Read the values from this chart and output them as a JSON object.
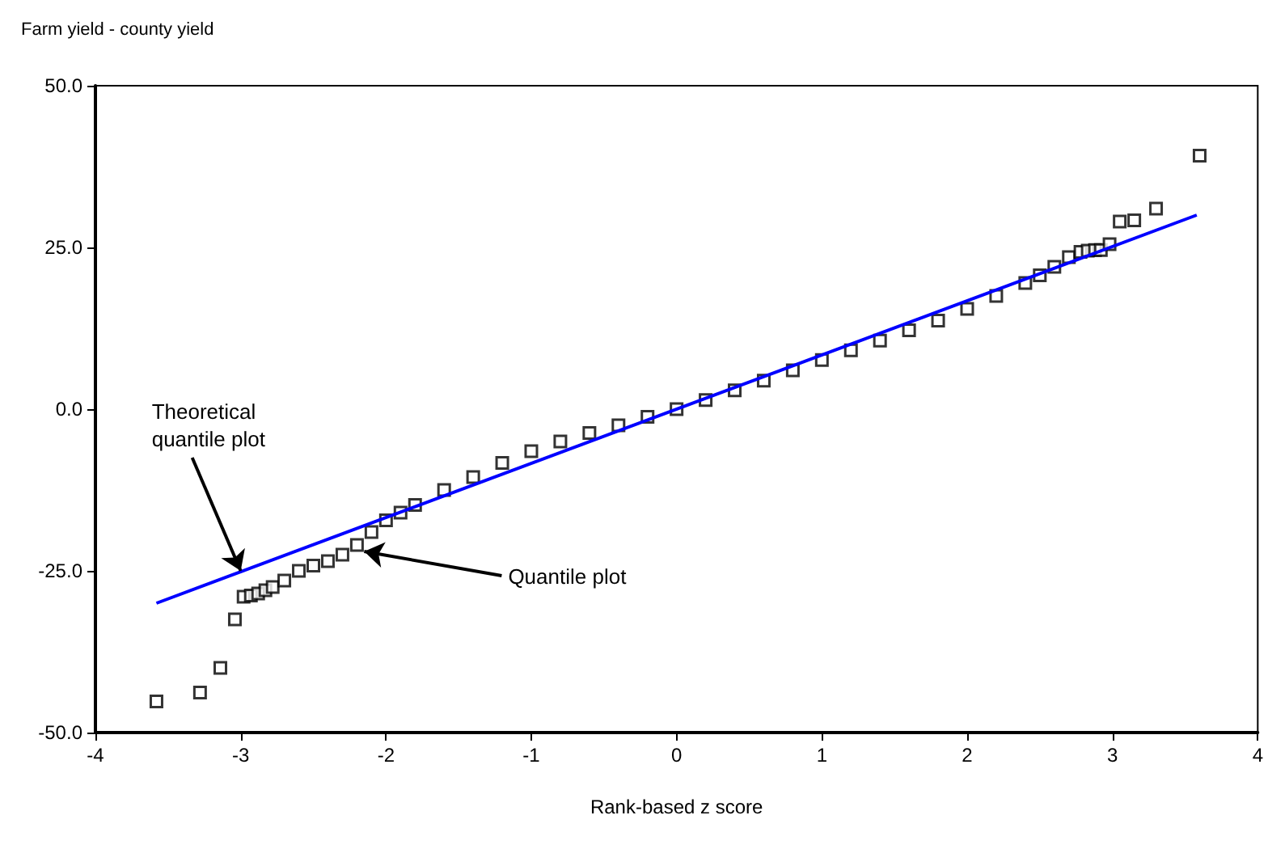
{
  "chart_data": {
    "type": "scatter",
    "ylabel": "Farm yield - county yield",
    "xlabel": "Rank-based z score",
    "xlim": [
      -4,
      4
    ],
    "xticks": [
      -4,
      -3,
      -2,
      -1,
      0,
      1,
      2,
      3,
      4
    ],
    "ylim": [
      -50,
      50
    ],
    "yticks": [
      {
        "value": -50,
        "label": "-50.0"
      },
      {
        "value": -25,
        "label": "-25.0"
      },
      {
        "value": 0,
        "label": "0.0"
      },
      {
        "value": 25,
        "label": "25.0"
      },
      {
        "value": 50,
        "label": "50.0"
      }
    ],
    "grid": false,
    "marker": "square",
    "series": [
      {
        "color": "#000000",
        "x": [
          -3.58,
          -3.28,
          -3.14,
          -3.04,
          -2.98,
          -2.93,
          -2.88,
          -2.83,
          -2.78,
          -2.7,
          -2.6,
          -2.5,
          -2.4,
          -2.3,
          -2.2,
          -2.1,
          -2.0,
          -1.9,
          -1.8,
          -1.6,
          -1.4,
          -1.2,
          -1.0,
          -0.8,
          -0.6,
          -0.4,
          -0.2,
          0,
          0.2,
          0.4,
          0.6,
          0.8,
          1.0,
          1.2,
          1.4,
          1.6,
          1.8,
          2.0,
          2.2,
          2.4,
          2.5,
          2.6,
          2.7,
          2.78,
          2.83,
          2.88,
          2.92,
          2.98,
          3.05,
          3.15,
          3.3,
          3.6
        ],
        "values": [
          -45.2,
          -43.8,
          -40,
          -32.5,
          -29,
          -28.8,
          -28.5,
          -28,
          -27.5,
          -26.5,
          -25,
          -24.2,
          -23.5,
          -22.5,
          -21,
          -19,
          -17.2,
          -16,
          -14.8,
          -12.5,
          -10.5,
          -8.3,
          -6.5,
          -5,
          -3.7,
          -2.5,
          -1.2,
          0,
          1.4,
          2.9,
          4.4,
          6,
          7.6,
          9.1,
          10.6,
          12.2,
          13.7,
          15.5,
          17.5,
          19.5,
          20.7,
          22,
          23.5,
          24.3,
          24.5,
          24.6,
          24.6,
          25.5,
          29,
          29.2,
          31,
          39.2
        ]
      },
      {
        "type": "line",
        "color": "#0000ff",
        "marker": "none",
        "line_style": "solid",
        "x": [
          -3.58,
          3.58
        ],
        "values": [
          -30,
          30
        ]
      }
    ],
    "annotations": [
      {
        "text": "Theoretical\nquantile plot",
        "x": -3,
        "y": -25
      },
      {
        "text": "Quantile plot",
        "x": -2.15,
        "y": -22
      }
    ]
  }
}
